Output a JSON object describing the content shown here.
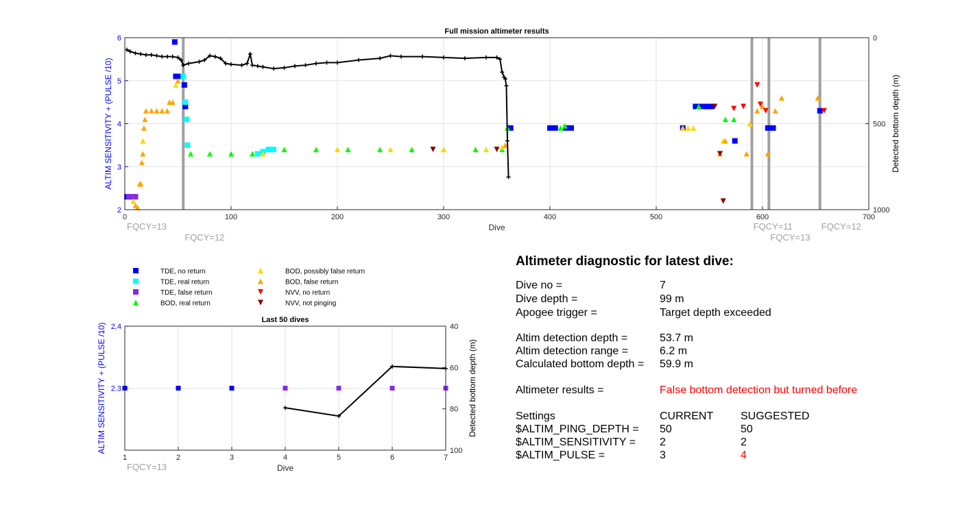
{
  "colors": {
    "tde_no_return": "#0000ff",
    "tde_real_return": "#00ffff",
    "tde_false_return": "#8a2be2",
    "bod_real_return": "#00ff00",
    "bod_possibly_false": "#ffd700",
    "bod_false_return": "#ffa500",
    "nvv_no_return": "#ff0000",
    "nvv_not_pinging": "#8b0000",
    "depth_line": "#000000",
    "fqcy_line": "#a0a0a0",
    "left_axis": "#0000ff",
    "highlight_red": "#ff0000"
  },
  "chart_data": [
    {
      "type": "scatter",
      "title": "Full mission altimeter results",
      "xlabel": "Dive",
      "ylabel_left": "ALTIM SENSITIVITY + (PULSE /10)",
      "ylabel_right": "Detected bottom depth (m)",
      "xlim": [
        0,
        700
      ],
      "ylim_left": [
        2,
        6
      ],
      "ylim_right": [
        1000,
        0
      ],
      "right_axis_reversed": true,
      "grid": true,
      "x_ticks": [
        0,
        100,
        200,
        300,
        400,
        500,
        600,
        700
      ],
      "y_left_ticks": [
        2,
        3,
        4,
        5,
        6
      ],
      "y_right_ticks": [
        0,
        500,
        1000
      ],
      "fqcy_lines": [
        {
          "x": 55,
          "label": "FQCY=12"
        },
        {
          "x": 590,
          "label": "FQCY=11"
        },
        {
          "x": 606,
          "label": "FQCY=13"
        },
        {
          "x": 654,
          "label": "FQCY=12"
        }
      ],
      "fqcy_start_label": "FQCY=13",
      "series": [
        {
          "name": "TDE, no return",
          "marker": "square",
          "points": [
            [
              2,
              2.3
            ],
            [
              47,
              5.9
            ],
            [
              48,
              5.1
            ],
            [
              53,
              5.1
            ],
            [
              56,
              4.9
            ],
            [
              57,
              4.4
            ],
            [
              363,
              3.9
            ],
            [
              400,
              3.9
            ],
            [
              405,
              3.9
            ],
            [
              415,
              3.9
            ],
            [
              420,
              3.9
            ],
            [
              525,
              3.9
            ],
            [
              537,
              4.4
            ],
            [
              542,
              4.4
            ],
            [
              547,
              4.4
            ],
            [
              552,
              4.4
            ],
            [
              574,
              3.6
            ],
            [
              605,
              3.9
            ],
            [
              610,
              3.9
            ],
            [
              654,
              4.3
            ]
          ]
        },
        {
          "name": "TDE, real return",
          "marker": "square",
          "points": [
            [
              55,
              5.1
            ],
            [
              57,
              4.5
            ],
            [
              58,
              4.1
            ],
            [
              59,
              3.5
            ],
            [
              125,
              3.3
            ],
            [
              130,
              3.35
            ],
            [
              135,
              3.4
            ],
            [
              140,
              3.4
            ]
          ]
        },
        {
          "name": "TDE, false return",
          "marker": "square",
          "points": [
            [
              4,
              2.3
            ],
            [
              6,
              2.3
            ],
            [
              8,
              2.3
            ],
            [
              10,
              2.3
            ]
          ]
        },
        {
          "name": "BOD, real return",
          "marker": "triangle-up",
          "points": [
            [
              62,
              3.3
            ],
            [
              80,
              3.3
            ],
            [
              100,
              3.3
            ],
            [
              120,
              3.3
            ],
            [
              150,
              3.4
            ],
            [
              180,
              3.4
            ],
            [
              210,
              3.4
            ],
            [
              240,
              3.4
            ],
            [
              270,
              3.4
            ],
            [
              300,
              3.4
            ],
            [
              330,
              3.4
            ],
            [
              355,
              3.4
            ],
            [
              360,
              3.9
            ],
            [
              410,
              3.9
            ],
            [
              414,
              3.95
            ],
            [
              540,
              4.4
            ],
            [
              565,
              4.1
            ],
            [
              573,
              4.1
            ]
          ]
        },
        {
          "name": "BOD, possibly false return",
          "marker": "triangle-up",
          "points": [
            [
              8,
              2.2
            ],
            [
              17,
              3.6
            ],
            [
              48,
              4.9
            ],
            [
              130,
              3.3
            ],
            [
              200,
              3.4
            ],
            [
              250,
              3.4
            ],
            [
              300,
              3.4
            ],
            [
              340,
              3.4
            ],
            [
              355,
              3.45
            ],
            [
              525,
              3.9
            ],
            [
              530,
              3.9
            ],
            [
              535,
              3.9
            ],
            [
              563,
              3.6
            ],
            [
              588,
              4.0
            ]
          ]
        },
        {
          "name": "BOD, false return",
          "marker": "triangle-up",
          "points": [
            [
              10,
              2.1
            ],
            [
              12,
              2.05
            ],
            [
              14,
              2.6
            ],
            [
              15,
              2.6
            ],
            [
              16,
              3.1
            ],
            [
              17,
              3.3
            ],
            [
              18,
              3.9
            ],
            [
              19,
              4.1
            ],
            [
              20,
              4.3
            ],
            [
              25,
              4.3
            ],
            [
              30,
              4.3
            ],
            [
              35,
              4.3
            ],
            [
              40,
              4.3
            ],
            [
              42,
              4.5
            ],
            [
              45,
              4.5
            ],
            [
              50,
              5.0
            ],
            [
              358,
              3.5
            ],
            [
              560,
              3.3
            ],
            [
              565,
              3.6
            ],
            [
              585,
              3.3
            ],
            [
              595,
              4.3
            ],
            [
              600,
              4.4
            ],
            [
              605,
              3.3
            ],
            [
              612,
              4.3
            ],
            [
              618,
              4.6
            ],
            [
              652,
              4.6
            ]
          ]
        },
        {
          "name": "NVV, no return",
          "marker": "triangle-down",
          "points": [
            [
              573,
              4.35
            ],
            [
              582,
              4.4
            ],
            [
              595,
              4.9
            ],
            [
              598,
              4.45
            ],
            [
              603,
              4.3
            ],
            [
              658,
              4.3
            ]
          ]
        },
        {
          "name": "NVV, not pinging",
          "marker": "triangle-down",
          "points": [
            [
              290,
              3.4
            ],
            [
              350,
              3.4
            ],
            [
              555,
              4.4
            ],
            [
              560,
              3.3
            ],
            [
              563,
              2.2
            ]
          ]
        }
      ],
      "bottom_depth_series": {
        "name": "Detected bottom depth",
        "x": [
          2,
          5,
          10,
          15,
          20,
          25,
          30,
          35,
          40,
          45,
          50,
          53,
          55,
          60,
          70,
          75,
          80,
          85,
          90,
          95,
          100,
          110,
          115,
          118,
          120,
          125,
          130,
          140,
          150,
          160,
          170,
          180,
          190,
          200,
          220,
          240,
          250,
          260,
          280,
          300,
          320,
          340,
          350,
          353,
          355,
          357,
          358,
          359,
          360,
          361
        ],
        "y": [
          70,
          80,
          90,
          95,
          100,
          100,
          105,
          110,
          110,
          110,
          115,
          130,
          160,
          150,
          140,
          130,
          105,
          110,
          120,
          150,
          155,
          160,
          150,
          95,
          160,
          165,
          170,
          180,
          175,
          165,
          160,
          150,
          145,
          145,
          130,
          120,
          105,
          110,
          110,
          115,
          120,
          115,
          115,
          125,
          200,
          230,
          240,
          280,
          600,
          810
        ]
      }
    },
    {
      "type": "scatter",
      "title": "Last 50 dives",
      "xlabel": "Dive",
      "ylabel_left": "ALTIM SENSITIVITY + (PULSE /10)",
      "ylabel_right": "Detected bottom depth (m)",
      "xlim": [
        1,
        7
      ],
      "ylim_left": [
        2.2,
        2.4
      ],
      "ylim_right": [
        100,
        40
      ],
      "right_axis_reversed": true,
      "grid": true,
      "x_ticks": [
        1,
        2,
        3,
        4,
        5,
        6,
        7
      ],
      "y_left_ticks": [
        2.3,
        2.4
      ],
      "y_right_ticks": [
        40,
        60,
        80,
        100
      ],
      "fqcy_start_label": "FQCY=13",
      "series": [
        {
          "name": "TDE, no return",
          "marker": "square",
          "points": [
            [
              1,
              2.3
            ],
            [
              2,
              2.3
            ],
            [
              3,
              2.3
            ]
          ]
        },
        {
          "name": "TDE, false return",
          "marker": "square",
          "points": [
            [
              4,
              2.3
            ],
            [
              5,
              2.3
            ],
            [
              6,
              2.3
            ],
            [
              7,
              2.3
            ]
          ]
        }
      ],
      "bottom_depth_series": {
        "name": "Detected bottom depth",
        "x": [
          4,
          5,
          6,
          7
        ],
        "y": [
          79.5,
          83.5,
          59.5,
          60.5
        ]
      }
    }
  ],
  "legend": [
    {
      "label": "TDE, no return",
      "marker": "square",
      "color_key": "tde_no_return"
    },
    {
      "label": "TDE, real return",
      "marker": "square",
      "color_key": "tde_real_return"
    },
    {
      "label": "TDE, false return",
      "marker": "square",
      "color_key": "tde_false_return"
    },
    {
      "label": "BOD, real return",
      "marker": "triangle-up",
      "color_key": "bod_real_return"
    },
    {
      "label": "BOD, possibly false return",
      "marker": "triangle-up",
      "color_key": "bod_possibly_false"
    },
    {
      "label": "BOD, false return",
      "marker": "triangle-up",
      "color_key": "bod_false_return"
    },
    {
      "label": "NVV, no return",
      "marker": "triangle-down",
      "color_key": "nvv_no_return"
    },
    {
      "label": "NVV, not pinging",
      "marker": "triangle-down",
      "color_key": "nvv_not_pinging"
    }
  ],
  "diagnostic": {
    "title": "Altimeter diagnostic for latest dive:",
    "dive_no_label": "Dive no =",
    "dive_no": "7",
    "dive_depth_label": "Dive depth =",
    "dive_depth": "99 m",
    "apogee_label": "Apogee trigger =",
    "apogee": "Target depth exceeded",
    "altim_depth_label": "Altim detection depth =",
    "altim_depth": "53.7 m",
    "altim_range_label": "Altim detection range =",
    "altim_range": "6.2 m",
    "calc_bottom_label": "Calculated bottom depth =",
    "calc_bottom": "59.9 m",
    "results_label": "Altimeter results =",
    "results": "False bottom detection but turned before",
    "settings_label": "Settings",
    "current_label": "CURRENT",
    "suggested_label": "SUGGESTED",
    "settings": [
      {
        "name": "$ALTIM_PING_DEPTH =",
        "current": "50",
        "suggested": "50",
        "changed": false
      },
      {
        "name": "$ALTIM_SENSITIVITY =",
        "current": "2",
        "suggested": "2",
        "changed": false
      },
      {
        "name": "$ALTIM_PULSE =",
        "current": "3",
        "suggested": "4",
        "changed": true
      }
    ]
  }
}
